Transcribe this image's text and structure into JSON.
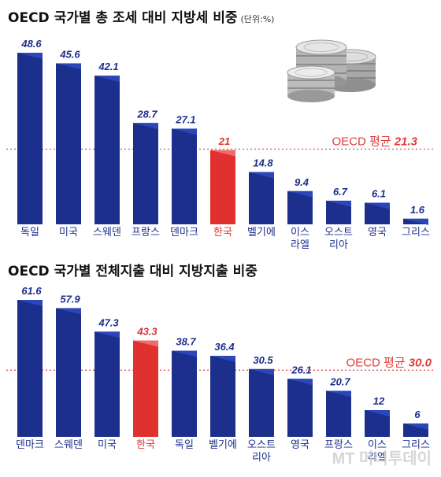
{
  "charts": [
    {
      "title": "OECD 국가별 총 조세 대비 지방세 비중",
      "unit": "(단위:%)",
      "average_label": "OECD 평균",
      "average_value": "21.3"
    },
    {
      "title": "OECD 국가별 전체지출 대비 지방지출 비중",
      "unit": "",
      "average_label": "OECD 평균",
      "average_value": "30.0"
    }
  ],
  "watermark": "MT 머니투데이",
  "colors": {
    "bar": "#1c2f8c",
    "bar_top": "#2a46b8",
    "highlight": "#e03030",
    "highlight_top": "#f26a6a",
    "average": "#e03c3c",
    "category_text": "#1c2f8c"
  },
  "icons": [
    "coins-icon"
  ],
  "chart_data": [
    {
      "type": "bar",
      "title": "OECD 국가별 총 조세 대비 지방세 비중",
      "unit": "%",
      "categories": [
        "독일",
        "미국",
        "스웨덴",
        "프랑스",
        "덴마크",
        "한국",
        "벨기에",
        "이스\n라엘",
        "오스트\n리아",
        "영국",
        "그리스"
      ],
      "values": [
        48.6,
        45.6,
        42.1,
        28.7,
        27.1,
        21,
        14.8,
        9.4,
        6.7,
        6.1,
        1.6
      ],
      "value_labels": [
        "48.6",
        "45.6",
        "42.1",
        "28.7",
        "27.1",
        "21",
        "14.8",
        "9.4",
        "6.7",
        "6.1",
        "1.6"
      ],
      "highlight": "한국",
      "reference_line": {
        "label": "OECD 평균",
        "value": 21.3
      },
      "ylim": [
        0,
        48.6
      ]
    },
    {
      "type": "bar",
      "title": "OECD 국가별 전체지출 대비 지방지출 비중",
      "categories": [
        "덴마크",
        "스웨덴",
        "미국",
        "한국",
        "독일",
        "벨기에",
        "오스트\n리아",
        "영국",
        "프랑스",
        "이스\n라엘",
        "그리스"
      ],
      "values": [
        61.6,
        57.9,
        47.3,
        43.3,
        38.7,
        36.4,
        30.5,
        26.1,
        20.7,
        12,
        6
      ],
      "value_labels": [
        "61.6",
        "57.9",
        "47.3",
        "43.3",
        "38.7",
        "36.4",
        "30.5",
        "26.1",
        "20.7",
        "12",
        "6"
      ],
      "highlight": "한국",
      "reference_line": {
        "label": "OECD 평균",
        "value": 30.0
      },
      "ylim": [
        0,
        61.6
      ]
    }
  ]
}
